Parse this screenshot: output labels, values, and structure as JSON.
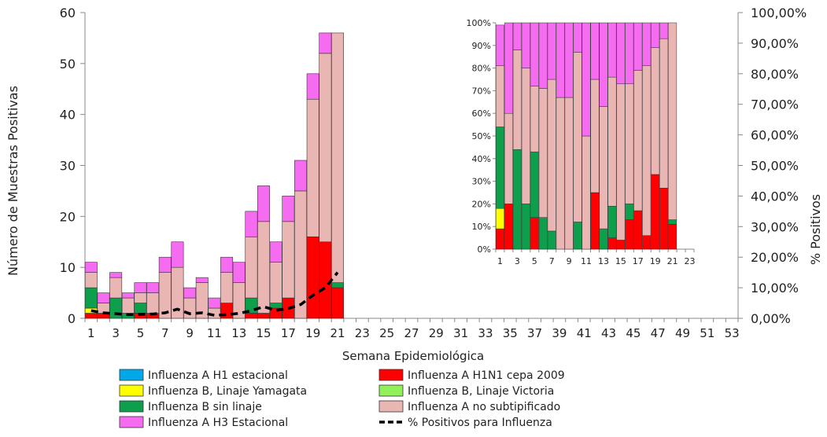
{
  "chart_data": [
    {
      "type": "bar",
      "stacked": true,
      "title": "",
      "xlabel": "Semana Epidemiológica",
      "ylabel": "Número de Muestras Positivas",
      "y2label": "% Positivos",
      "ylim": [
        0,
        60
      ],
      "y2lim": [
        0,
        100
      ],
      "yticks": [
        "0",
        "10",
        "20",
        "30",
        "40",
        "50",
        "60"
      ],
      "y2ticks": [
        "0,00%",
        "10,00%",
        "20,00%",
        "30,00%",
        "40,00%",
        "50,00%",
        "60,00%",
        "70,00%",
        "80,00%",
        "90,00%",
        "100,00%"
      ],
      "xticks": [
        "1",
        "3",
        "5",
        "7",
        "9",
        "11",
        "13",
        "15",
        "17",
        "19",
        "21",
        "23",
        "25",
        "27",
        "29",
        "31",
        "33",
        "35",
        "37",
        "39",
        "41",
        "43",
        "45",
        "47",
        "49",
        "51",
        "53"
      ],
      "weeks": 53,
      "grid": false,
      "legend_position": "bottom",
      "colors": {
        "h1_estacional": "#00a8e8",
        "h1n1_2009": "#ff0000",
        "b_yamagata": "#ffff00",
        "b_victoria": "#92f05a",
        "b_sin_linaje": "#0d9f4c",
        "a_no_subtipificado": "#e9b6b4",
        "h3_estacional": "#f56cf0",
        "line": "#000000"
      },
      "series": [
        {
          "name": "Influenza A H1 estacional",
          "key": "h1_estacional",
          "values": [
            0,
            0,
            0,
            0,
            0,
            0,
            0,
            0,
            0,
            0,
            0,
            0,
            0,
            0,
            0,
            0,
            0,
            0,
            0,
            0,
            0
          ]
        },
        {
          "name": "Influenza A H1N1 cepa 2009",
          "key": "h1n1_2009",
          "values": [
            1,
            1,
            0,
            0,
            1,
            1,
            0,
            0,
            0,
            0,
            0,
            3,
            0,
            1,
            1,
            2,
            4,
            0,
            16,
            15,
            6
          ]
        },
        {
          "name": "Influenza B, Linaje Yamagata",
          "key": "b_yamagata",
          "values": [
            1,
            0,
            0,
            0,
            0,
            0,
            0,
            0,
            0,
            0,
            0,
            0,
            0,
            0,
            0,
            0,
            0,
            0,
            0,
            0,
            0
          ]
        },
        {
          "name": "Influenza B, Linaje Victoria",
          "key": "b_victoria",
          "values": [
            0,
            0,
            0,
            0,
            0,
            0,
            0,
            0,
            0,
            0,
            0,
            0,
            0,
            0,
            0,
            0,
            0,
            0,
            0,
            0,
            0
          ]
        },
        {
          "name": "Influenza B sin linaje",
          "key": "b_sin_linaje",
          "values": [
            4,
            0,
            4,
            1,
            2,
            0,
            0,
            0,
            0,
            0,
            0,
            0,
            0,
            3,
            0,
            1,
            0,
            0,
            0,
            0,
            1
          ]
        },
        {
          "name": "Influenza A no subtipificado",
          "key": "a_no_subtipificado",
          "values": [
            3,
            2,
            4,
            3,
            2,
            4,
            9,
            10,
            4,
            7,
            2,
            6,
            7,
            12,
            18,
            8,
            15,
            25,
            27,
            37,
            49
          ]
        },
        {
          "name": "Influenza A H3 Estacional",
          "key": "h3_estacional",
          "values": [
            2,
            2,
            1,
            1,
            2,
            2,
            3,
            5,
            2,
            1,
            2,
            3,
            4,
            5,
            7,
            4,
            5,
            6,
            5,
            4,
            0
          ]
        },
        {
          "name": "% Positivos para Influenza",
          "key": "line",
          "type": "line",
          "axis": "right",
          "values": [
            2.5,
            1.8,
            1.5,
            1.2,
            1.3,
            1.4,
            1.8,
            3.0,
            1.5,
            1.8,
            1.0,
            1.2,
            1.6,
            2.5,
            3.8,
            2.6,
            3.2,
            4.5,
            7.5,
            10.0,
            15.0
          ]
        }
      ]
    },
    {
      "type": "bar",
      "stacked": true,
      "percent": true,
      "title": "",
      "inset": true,
      "ylim": [
        0,
        100
      ],
      "yticks": [
        "0%",
        "10%",
        "20%",
        "30%",
        "40%",
        "50%",
        "60%",
        "70%",
        "80%",
        "90%",
        "100%"
      ],
      "xticks": [
        "1",
        "3",
        "5",
        "7",
        "9",
        "11",
        "13",
        "15",
        "17",
        "19",
        "21",
        "23"
      ],
      "series": [
        {
          "name": "Influenza A H1N1 cepa 2009",
          "key": "h1n1_2009",
          "values": [
            9,
            20,
            0,
            0,
            14,
            0,
            0,
            0,
            0,
            0,
            0,
            25,
            0,
            5,
            4,
            13,
            17,
            6,
            33,
            27,
            11
          ]
        },
        {
          "name": "Influenza B, Linaje Yamagata",
          "key": "b_yamagata",
          "values": [
            9,
            0,
            0,
            0,
            0,
            0,
            0,
            0,
            0,
            0,
            0,
            0,
            0,
            0,
            0,
            0,
            0,
            0,
            0,
            0,
            0
          ]
        },
        {
          "name": "Influenza B sin linaje",
          "key": "b_sin_linaje",
          "values": [
            36,
            0,
            44,
            20,
            29,
            14,
            8,
            0,
            0,
            12,
            0,
            0,
            9,
            14,
            0,
            7,
            0,
            0,
            0,
            0,
            2
          ]
        },
        {
          "name": "Influenza A no subtipificado",
          "key": "a_no_subtipificado",
          "values": [
            27,
            40,
            44,
            60,
            29,
            57,
            67,
            67,
            67,
            75,
            50,
            50,
            54,
            57,
            69,
            53,
            62,
            75,
            56,
            66,
            87
          ]
        },
        {
          "name": "Influenza A H3 Estacional",
          "key": "h3_estacional",
          "values": [
            18,
            40,
            12,
            20,
            29,
            29,
            25,
            33,
            33,
            13,
            50,
            25,
            37,
            24,
            27,
            27,
            21,
            19,
            11,
            7,
            0
          ]
        }
      ]
    }
  ]
}
